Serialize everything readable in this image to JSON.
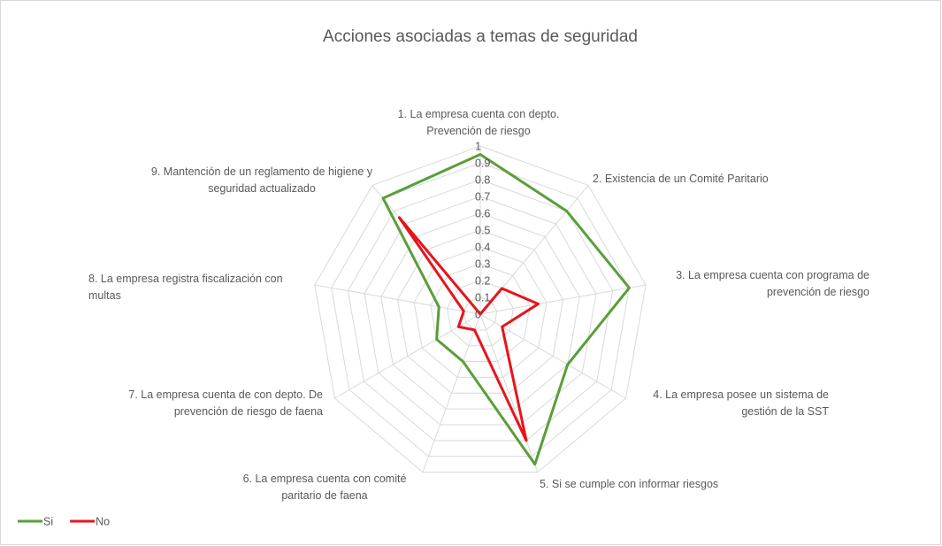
{
  "chart_data": {
    "type": "radar",
    "title": "Acciones asociadas a temas de seguridad",
    "categories": [
      "1. La empresa cuenta con depto. Prevención de riesgo",
      "2. Existencia de un Comité Paritario",
      "3. La empresa cuenta con programa de prevención de riesgo",
      "4. La empresa posee un sistema de gestión de la SST",
      "5. Si se cumple con informar riesgos",
      "6. La empresa cuenta con comité paritario de faena",
      "7. La empresa cuenta de con depto. De prevención de riesgo de faena",
      "8. La empresa registra fiscalización con multas",
      "9. Mantención de un reglamento de higiene y seguridad actualizado"
    ],
    "series": [
      {
        "name": "Si",
        "color": "#5a9e3a",
        "values": [
          0.95,
          0.8,
          0.9,
          0.6,
          0.95,
          0.3,
          0.3,
          0.25,
          0.9
        ]
      },
      {
        "name": "No",
        "color": "#e8141b",
        "values": [
          0,
          0.2,
          0.35,
          0.15,
          0.8,
          0.1,
          0.15,
          0.1,
          0.75
        ]
      }
    ],
    "ylim": [
      0,
      1
    ],
    "yticks": [
      0,
      0.1,
      0.2,
      0.3,
      0.4,
      0.5,
      0.6,
      0.7,
      0.8,
      0.9,
      1
    ],
    "grid": true,
    "legend": "bottom-left"
  }
}
